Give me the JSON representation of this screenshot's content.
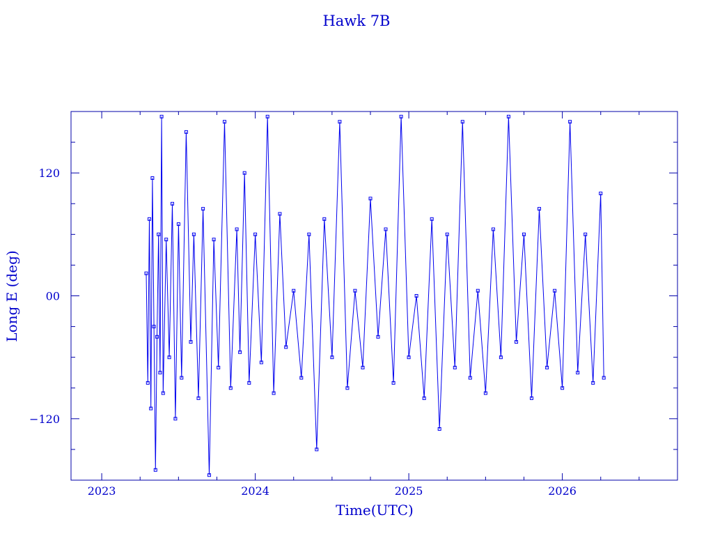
{
  "chart_data": {
    "type": "scatter",
    "title": "Hawk 7B",
    "xlabel": "Time(UTC)",
    "ylabel": "Long E (deg)",
    "x_range": [
      2022.8,
      2026.75
    ],
    "ylim": [
      -180,
      180
    ],
    "x_ticks": [
      2023,
      2024,
      2025,
      2026
    ],
    "x_tick_labels": [
      "2023",
      "2024",
      "2025",
      "2026"
    ],
    "y_ticks": [
      -120,
      0,
      120
    ],
    "y_tick_labels": [
      "−120",
      "00",
      "120"
    ],
    "grid": false,
    "markers": "squares connected by lines",
    "color": "#0000ee",
    "series": [
      {
        "x": [
          2023.29,
          2023.3,
          2023.31,
          2023.32,
          2023.33,
          2023.34,
          2023.35,
          2023.36,
          2023.37,
          2023.38,
          2023.39,
          2023.4,
          2023.42,
          2023.44,
          2023.46,
          2023.48,
          2023.5,
          2023.52,
          2023.55,
          2023.58,
          2023.6,
          2023.63,
          2023.66,
          2023.7,
          2023.73,
          2023.76,
          2023.8,
          2023.84,
          2023.88,
          2023.9,
          2023.93,
          2023.96,
          2024.0,
          2024.04,
          2024.08,
          2024.12,
          2024.16,
          2024.2,
          2024.25,
          2024.3,
          2024.35,
          2024.4,
          2024.45,
          2024.5,
          2024.55,
          2024.6,
          2024.65,
          2024.7,
          2024.75,
          2024.8,
          2024.85,
          2024.9,
          2024.95,
          2025.0,
          2025.05,
          2025.1,
          2025.15,
          2025.2,
          2025.25,
          2025.3,
          2025.35,
          2025.4,
          2025.45,
          2025.5,
          2025.55,
          2025.6,
          2025.65,
          2025.7,
          2025.75,
          2025.8,
          2025.85,
          2025.9,
          2025.95,
          2026.0,
          2026.05,
          2026.1,
          2026.15,
          2026.2,
          2026.25,
          2026.27
        ],
        "y": [
          22,
          -85,
          75,
          -110,
          115,
          -30,
          -170,
          -40,
          60,
          -75,
          175,
          -95,
          55,
          -60,
          90,
          -120,
          70,
          -80,
          160,
          -45,
          60,
          -100,
          85,
          -175,
          55,
          -70,
          170,
          -90,
          65,
          -55,
          120,
          -85,
          60,
          -65,
          175,
          -95,
          80,
          -50,
          5,
          -80,
          60,
          -150,
          75,
          -60,
          170,
          -90,
          5,
          -70,
          95,
          -40,
          65,
          -85,
          175,
          -60,
          0,
          -100,
          75,
          -130,
          60,
          -70,
          170,
          -80,
          5,
          -95,
          65,
          -60,
          175,
          -45,
          60,
          -100,
          85,
          -70,
          5,
          -90,
          170,
          -75,
          60,
          -85,
          100,
          -80
        ]
      }
    ]
  }
}
